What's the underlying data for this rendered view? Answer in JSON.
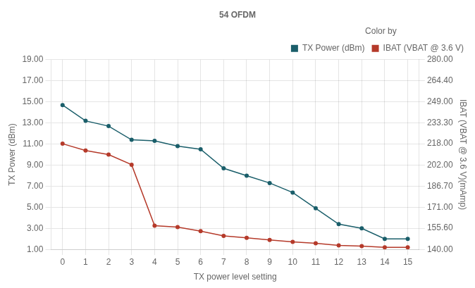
{
  "chart_data": {
    "type": "line",
    "title": "54 OFDM",
    "xlabel": "TX power level setting",
    "ylabel": "TX Power (dBm)",
    "y2label": "IBAT (VBAT @ 3.6 V)(mAmp)",
    "legend_title": "Color by",
    "legend": "upper right",
    "grid": true,
    "x": [
      0,
      1,
      2,
      3,
      4,
      5,
      6,
      7,
      8,
      9,
      10,
      11,
      12,
      13,
      14,
      15
    ],
    "xlim": [
      -0.5,
      15.5
    ],
    "xticks": [
      0,
      1,
      2,
      3,
      4,
      5,
      6,
      7,
      8,
      9,
      10,
      11,
      12,
      13,
      14,
      15
    ],
    "ylim": [
      1.0,
      19.0
    ],
    "yticks": [
      {
        "value": 1.0,
        "label": "1.00"
      },
      {
        "value": 3.0,
        "label": "3.00"
      },
      {
        "value": 5.0,
        "label": "5.00"
      },
      {
        "value": 7.0,
        "label": "7.00"
      },
      {
        "value": 9.0,
        "label": "9.00"
      },
      {
        "value": 11.0,
        "label": "11.00"
      },
      {
        "value": 13.0,
        "label": "13.00"
      },
      {
        "value": 15.0,
        "label": "15.00"
      },
      {
        "value": 17.0,
        "label": "17.00"
      },
      {
        "value": 19.0,
        "label": "19.00"
      }
    ],
    "y2lim": [
      140.0,
      280.0
    ],
    "y2ticks": [
      {
        "value": 140.0,
        "label": "140.00"
      },
      {
        "value": 155.6,
        "label": "155.60"
      },
      {
        "value": 171.0,
        "label": "171.00"
      },
      {
        "value": 186.7,
        "label": "186.70"
      },
      {
        "value": 202.0,
        "label": "202.00"
      },
      {
        "value": 218.0,
        "label": "218.00"
      },
      {
        "value": 233.3,
        "label": "233.30"
      },
      {
        "value": 249.0,
        "label": "249.00"
      },
      {
        "value": 264.4,
        "label": "264.40"
      },
      {
        "value": 280.0,
        "label": "280.00"
      }
    ],
    "series": [
      {
        "name": "TX Power (dBm)",
        "color": "#1a5e6a",
        "marker": "circle",
        "values": [
          14.7,
          13.2,
          12.7,
          11.4,
          11.3,
          10.8,
          10.5,
          8.7,
          8.0,
          7.3,
          6.4,
          4.9,
          3.4,
          3.0,
          2.0,
          2.0
        ]
      },
      {
        "name": "IBAT (VBAT @ 3.6 V)",
        "color": "#b53a2a",
        "marker": "circle",
        "axis": "y2",
        "values": [
          218.0,
          213.0,
          210.0,
          202.5,
          157.5,
          156.5,
          153.5,
          150.0,
          148.5,
          147.0,
          145.5,
          144.5,
          143.0,
          142.5,
          141.5,
          141.5
        ]
      }
    ]
  }
}
